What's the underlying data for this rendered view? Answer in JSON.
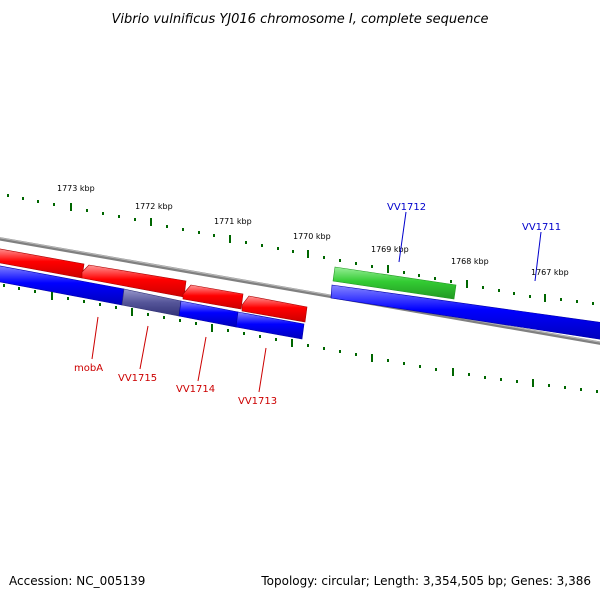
{
  "title": "Vibrio vulnificus YJ016 chromosome I, complete sequence",
  "footer": {
    "accession": "Accession: NC_005139",
    "summary": "Topology: circular; Length: 3,354,505 bp; Genes: 3,386"
  },
  "scale_labels": [
    "1773 kbp",
    "1772 kbp",
    "1771 kbp",
    "1770 kbp",
    "1769 kbp",
    "1768 kbp",
    "1767 kbp"
  ],
  "gene_labels": {
    "mobA": "mobA",
    "VV1715": "VV1715",
    "VV1714": "VV1714",
    "VV1713": "VV1713",
    "VV1712": "VV1712",
    "VV1711": "VV1711"
  },
  "colors": {
    "reverse_gene": "#ff0000",
    "forward_gene": "#33cc33",
    "cds_track": "#0000ff",
    "highlight_cds": "#555599",
    "backbone": "#808080",
    "tick": "#006600",
    "reverse_label": "#cc0000",
    "forward_label": "#0000cc"
  }
}
